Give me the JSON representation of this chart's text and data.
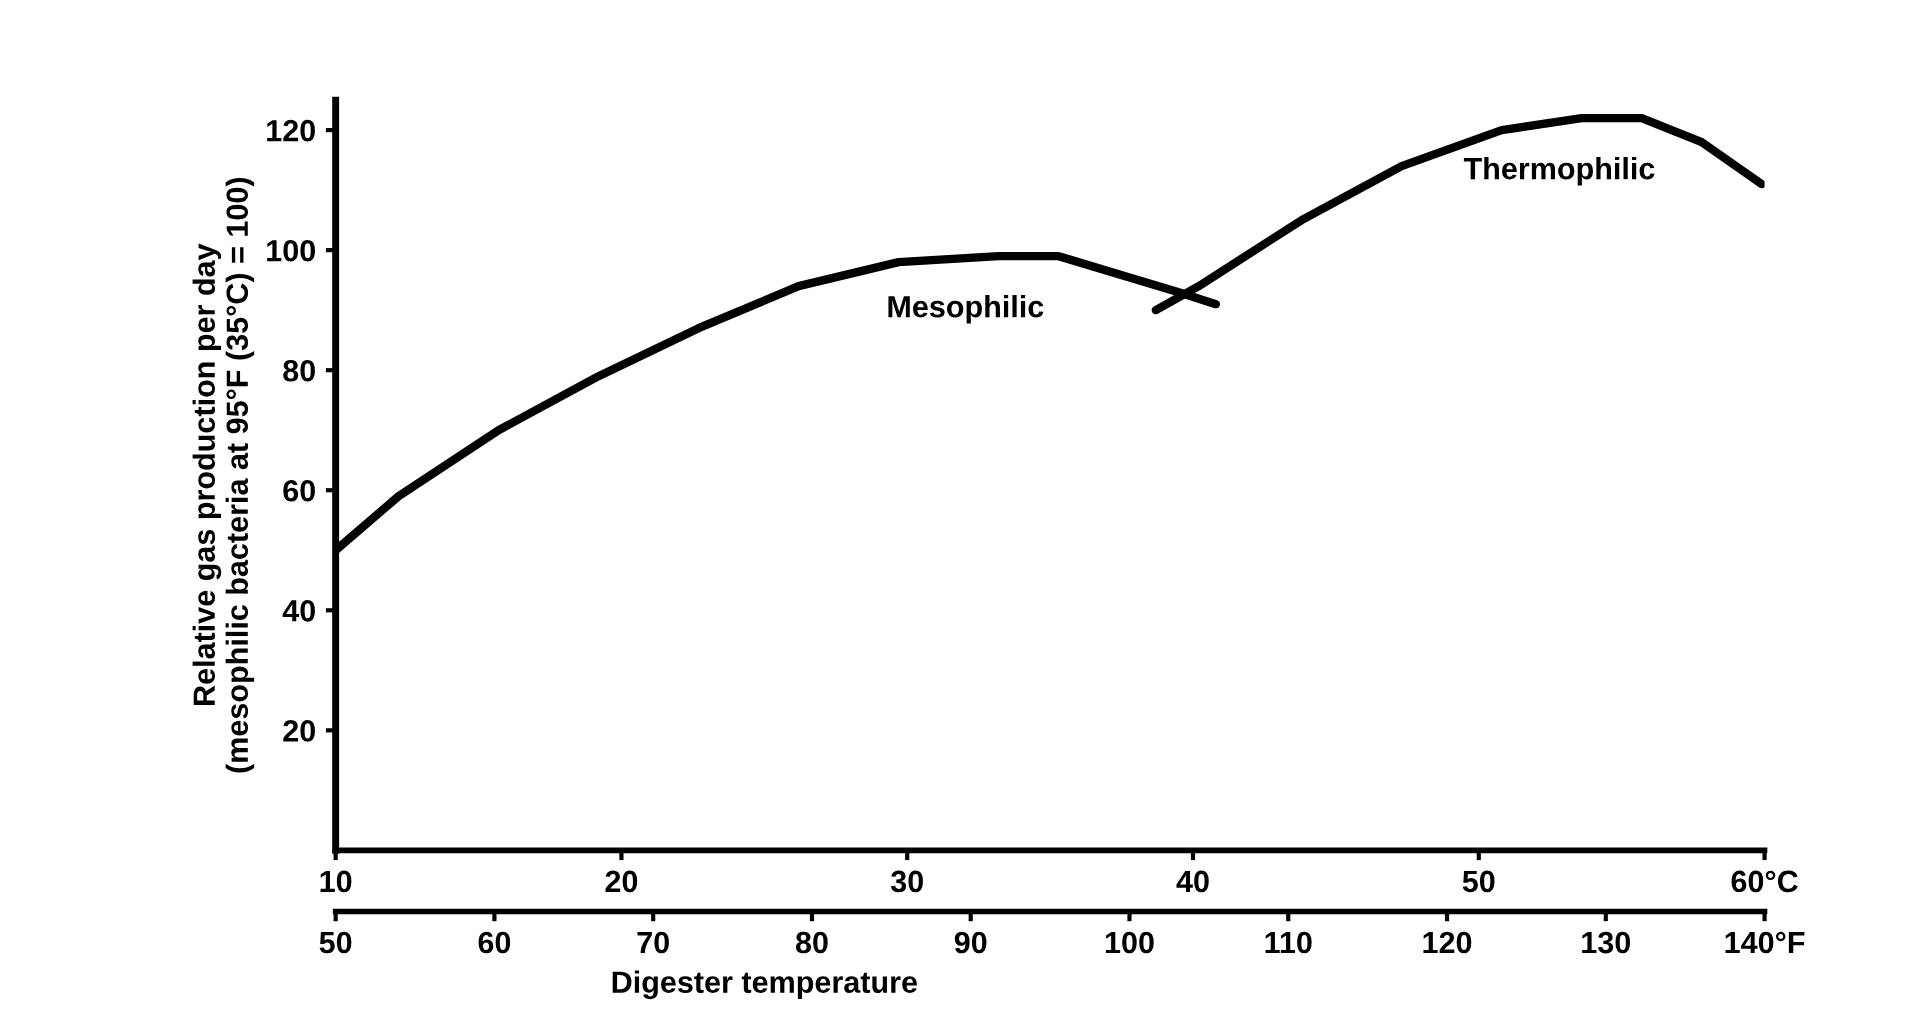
{
  "chart_data": {
    "type": "line",
    "xlabel": "Digester temperature",
    "ylabel": "Relative gas production per day\n(mesophilic bacteria at 95°F (35°C) = 100)",
    "x2label": null,
    "series": [
      {
        "name": "Mesophilic",
        "color": "#000000",
        "x": [
          10,
          12.2,
          15.7,
          19.2,
          22.7,
          26.2,
          29.7,
          33.2,
          35.3,
          37.4,
          39.5,
          40.8
        ],
        "values": [
          50,
          59,
          70,
          79,
          87,
          94,
          98,
          99,
          99,
          96,
          93,
          91
        ]
      },
      {
        "name": "Thermophilic",
        "color": "#000000",
        "x": [
          38.7,
          40.2,
          43.8,
          47.3,
          50.8,
          53.6,
          55.7,
          57.8,
          59.9
        ],
        "values": [
          90,
          94,
          105,
          114,
          120,
          122,
          122,
          118,
          111
        ]
      }
    ],
    "xlim": [
      10,
      60
    ],
    "xticks": [
      10,
      20,
      30,
      40,
      50,
      {
        "value": 60,
        "label": "60°C"
      }
    ],
    "x2lim": [
      50,
      140
    ],
    "x2ticks": [
      50,
      60,
      70,
      80,
      90,
      100,
      110,
      120,
      130,
      {
        "value": 140,
        "label": "140°F"
      }
    ],
    "ylim": [
      0,
      125
    ],
    "yticks": [
      20,
      40,
      60,
      80,
      100,
      120
    ],
    "grid": false,
    "legend": false,
    "marker": "none",
    "line_style": "solid"
  }
}
